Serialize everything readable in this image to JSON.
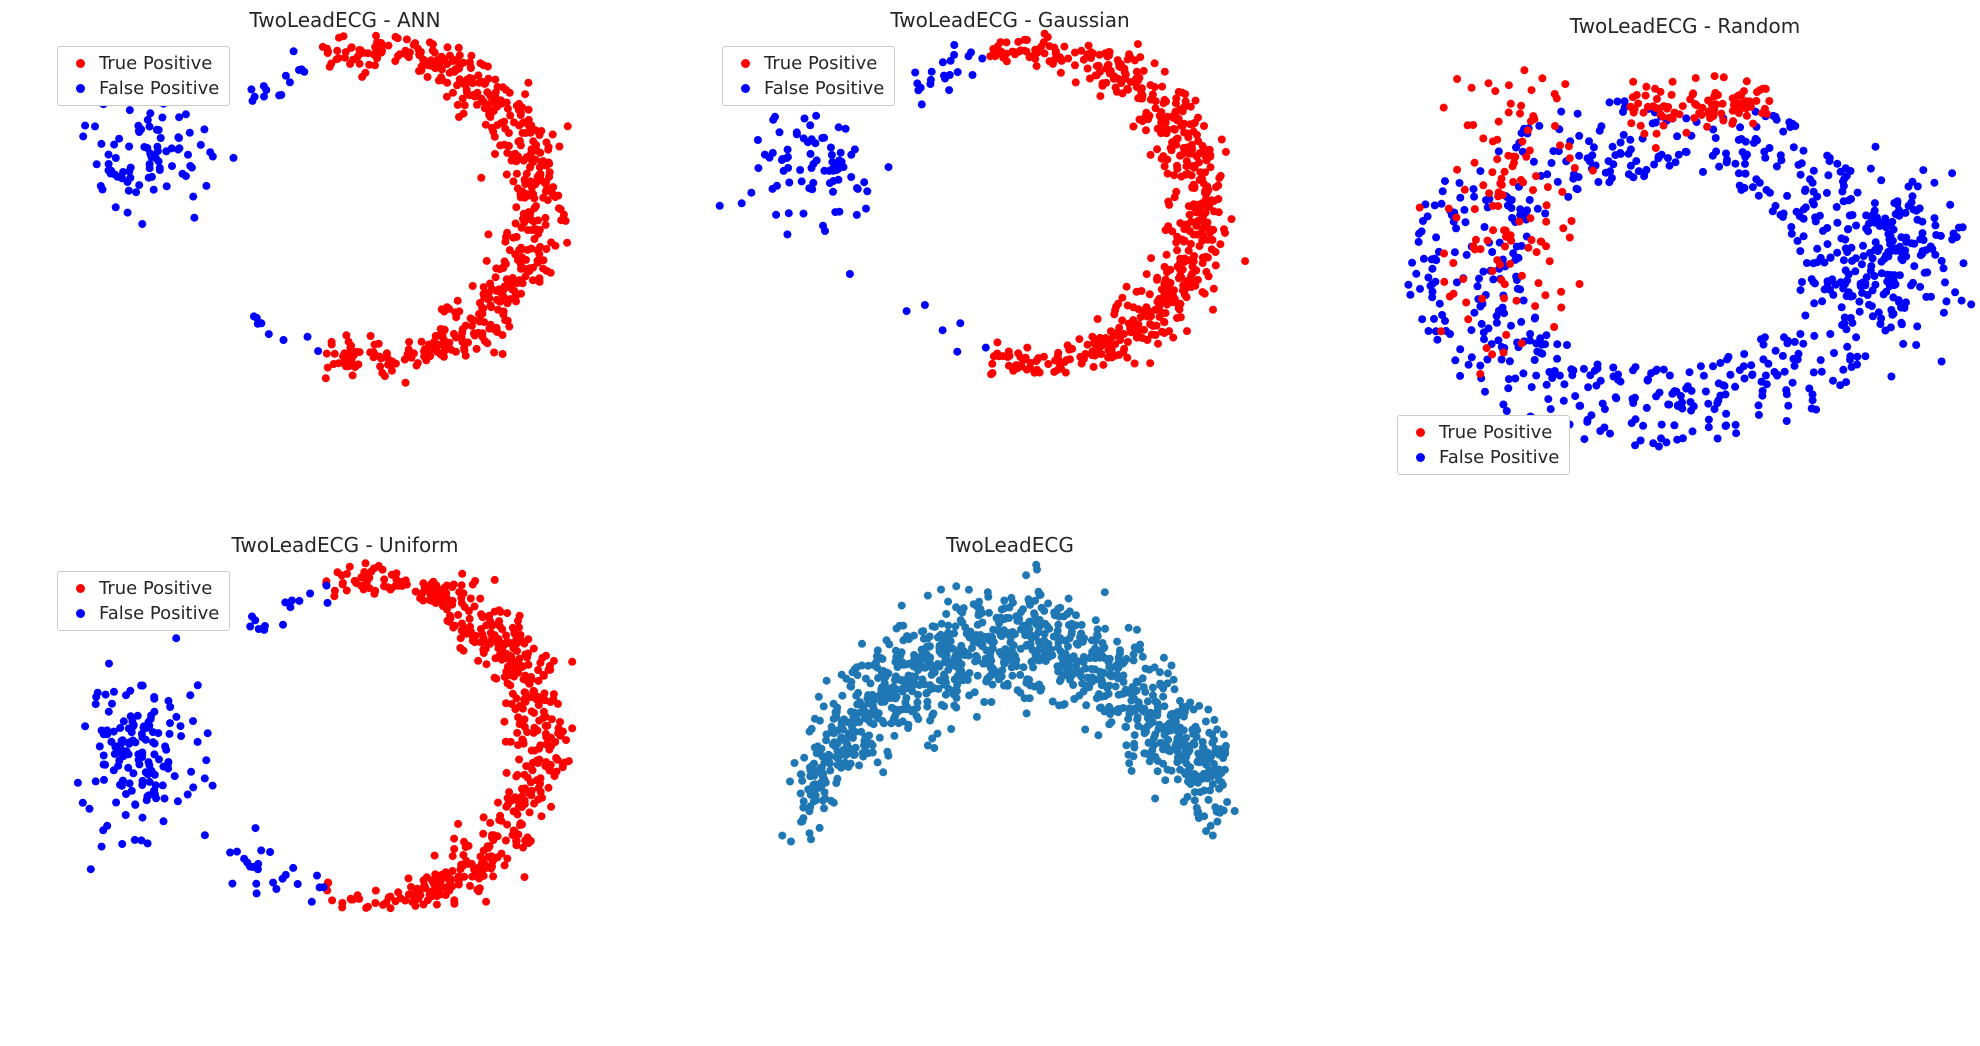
{
  "colors": {
    "true_positive": "#ff0000",
    "false_positive": "#0000ff",
    "raw": "#1f77b4"
  },
  "chart_data": [
    {
      "type": "scatter",
      "title": "TwoLeadECG - ANN",
      "legend": [
        "True Positive",
        "False Positive"
      ],
      "legend_position": "top-left",
      "axes_visible": false,
      "grid": false,
      "shape": "ring-open-left",
      "series": [
        {
          "name": "True Positive",
          "color": "#ff0000",
          "points": 560
        },
        {
          "name": "False Positive",
          "color": "#0000ff",
          "points": 110
        }
      ]
    },
    {
      "type": "scatter",
      "title": "TwoLeadECG - Gaussian",
      "legend": [
        "True Positive",
        "False Positive"
      ],
      "legend_position": "top-left",
      "axes_visible": false,
      "grid": false,
      "shape": "ring-open-left",
      "series": [
        {
          "name": "True Positive",
          "color": "#ff0000",
          "points": 560
        },
        {
          "name": "False Positive",
          "color": "#0000ff",
          "points": 110
        }
      ]
    },
    {
      "type": "scatter",
      "title": "TwoLeadECG - Random",
      "legend": [
        "True Positive",
        "False Positive"
      ],
      "legend_position": "bottom-left",
      "axes_visible": false,
      "grid": false,
      "shape": "mixed-ring",
      "series": [
        {
          "name": "True Positive",
          "color": "#ff0000",
          "points": 230
        },
        {
          "name": "False Positive",
          "color": "#0000ff",
          "points": 760
        }
      ]
    },
    {
      "type": "scatter",
      "title": "TwoLeadECG - Uniform",
      "legend": [
        "True Positive",
        "False Positive"
      ],
      "legend_position": "top-left",
      "axes_visible": false,
      "grid": false,
      "shape": "ring-open-left",
      "series": [
        {
          "name": "True Positive",
          "color": "#ff0000",
          "points": 540
        },
        {
          "name": "False Positive",
          "color": "#0000ff",
          "points": 190
        }
      ]
    },
    {
      "type": "scatter",
      "title": "TwoLeadECG",
      "legend": [],
      "axes_visible": false,
      "grid": false,
      "shape": "arch",
      "series": [
        {
          "name": "",
          "color": "#1f77b4",
          "points": 1100
        }
      ]
    }
  ]
}
